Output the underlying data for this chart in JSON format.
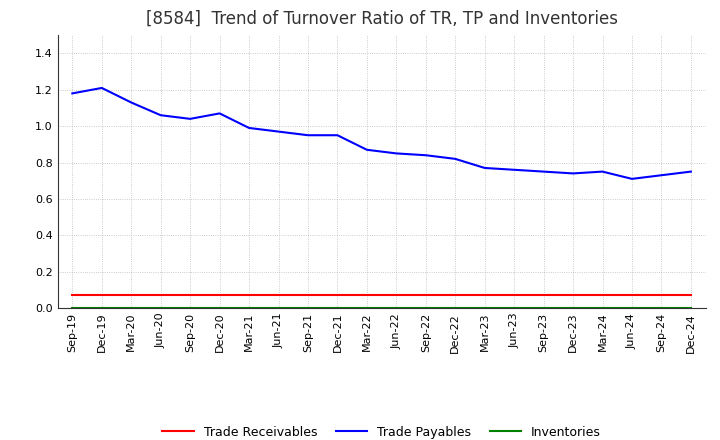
{
  "title": "[8584]  Trend of Turnover Ratio of TR, TP and Inventories",
  "x_labels": [
    "Sep-19",
    "Dec-19",
    "Mar-20",
    "Jun-20",
    "Sep-20",
    "Dec-20",
    "Mar-21",
    "Jun-21",
    "Sep-21",
    "Dec-21",
    "Mar-22",
    "Jun-22",
    "Sep-22",
    "Dec-22",
    "Mar-23",
    "Jun-23",
    "Sep-23",
    "Dec-23",
    "Mar-24",
    "Jun-24",
    "Sep-24",
    "Dec-24"
  ],
  "trade_payables": [
    1.18,
    1.21,
    1.13,
    1.06,
    1.04,
    1.07,
    0.99,
    0.97,
    0.95,
    0.95,
    0.87,
    0.85,
    0.84,
    0.82,
    0.77,
    0.76,
    0.75,
    0.74,
    0.75,
    0.71,
    0.73,
    0.75
  ],
  "trade_receivables": [
    0.07,
    0.07,
    0.07,
    0.07,
    0.07,
    0.07,
    0.07,
    0.07,
    0.07,
    0.07,
    0.07,
    0.07,
    0.07,
    0.07,
    0.07,
    0.07,
    0.07,
    0.07,
    0.07,
    0.07,
    0.07,
    0.07
  ],
  "inventories": [
    0.0,
    0.0,
    0.0,
    0.0,
    0.0,
    0.0,
    0.0,
    0.0,
    0.0,
    0.0,
    0.0,
    0.0,
    0.0,
    0.0,
    0.0,
    0.0,
    0.0,
    0.0,
    0.0,
    0.0,
    0.0,
    0.0
  ],
  "ylim": [
    0.0,
    1.5
  ],
  "yticks": [
    0.0,
    0.2,
    0.4,
    0.6,
    0.8,
    1.0,
    1.2,
    1.4
  ],
  "tp_color": "#0000ff",
  "tr_color": "#ff0000",
  "inv_color": "#008000",
  "background_color": "#ffffff",
  "grid_color": "#aaaaaa",
  "legend_labels": [
    "Trade Receivables",
    "Trade Payables",
    "Inventories"
  ],
  "title_fontsize": 12,
  "axis_fontsize": 8,
  "legend_fontsize": 9,
  "title_color": "#333333"
}
